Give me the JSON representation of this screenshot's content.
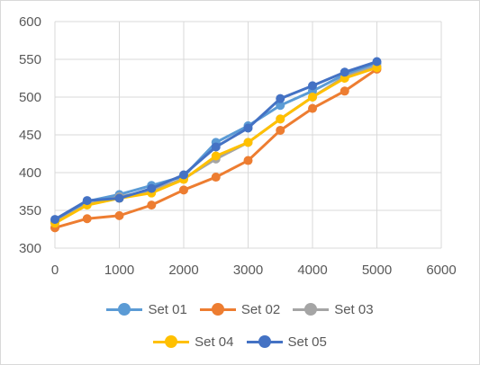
{
  "chart_data": {
    "type": "line",
    "title": "",
    "xlabel": "",
    "ylabel": "",
    "xlim": [
      0,
      6000
    ],
    "ylim": [
      300,
      600
    ],
    "xticks": [
      0,
      1000,
      2000,
      3000,
      4000,
      5000,
      6000
    ],
    "yticks": [
      300,
      350,
      400,
      450,
      500,
      550,
      600
    ],
    "grid": true,
    "legend_position": "bottom",
    "x": [
      0,
      500,
      1000,
      1500,
      2000,
      2500,
      3000,
      3500,
      4000,
      4500,
      5000
    ],
    "series": [
      {
        "name": "Set 01",
        "color": "#5b9bd5",
        "values": [
          335,
          362,
          371,
          383,
          395,
          440,
          462,
          489,
          508,
          530,
          545
        ]
      },
      {
        "name": "Set 02",
        "color": "#ed7d31",
        "values": [
          327,
          339,
          343,
          357,
          377,
          394,
          416,
          456,
          485,
          508,
          537
        ]
      },
      {
        "name": "Set 03",
        "color": "#a5a5a5",
        "values": [
          334,
          358,
          368,
          376,
          392,
          418,
          440,
          471,
          500,
          527,
          541
        ]
      },
      {
        "name": "Set 04",
        "color": "#ffc000",
        "values": [
          333,
          357,
          366,
          373,
          391,
          422,
          440,
          471,
          500,
          525,
          539
        ]
      },
      {
        "name": "Set 05",
        "color": "#4472c4",
        "values": [
          338,
          363,
          366,
          379,
          397,
          434,
          459,
          498,
          515,
          533,
          547
        ]
      }
    ]
  }
}
